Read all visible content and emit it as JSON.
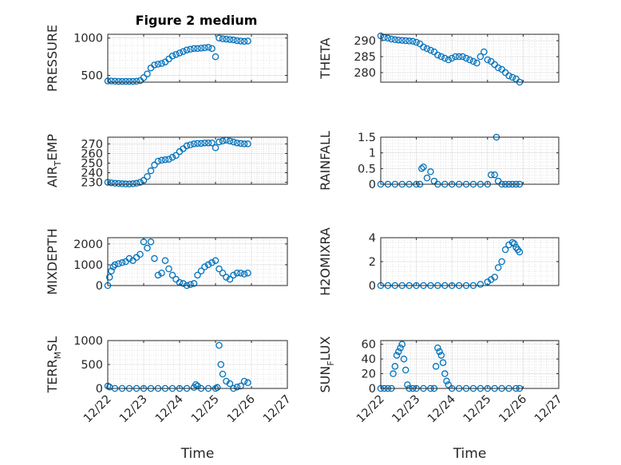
{
  "figure_title": "Figure 2 medium",
  "colors": {
    "marker": "#0072BD",
    "axes": "#262626",
    "grid": "#d9d9d9"
  },
  "chart_data": [
    {
      "type": "scatter",
      "name": "pressure",
      "title": "Figure 2 medium",
      "ylabel_main": "PRESSURE",
      "ylabel_sub": "",
      "ylabel_tail": "",
      "xlabel": "",
      "xlim": [
        0,
        5
      ],
      "ylim": [
        410,
        1050
      ],
      "yticks": [
        500,
        1000
      ],
      "ytick_labels": [
        "500",
        "1000"
      ],
      "x_tick_labels_visible": false,
      "x": [
        0,
        0.1,
        0.2,
        0.3,
        0.4,
        0.5,
        0.6,
        0.7,
        0.8,
        0.9,
        1.0,
        1.1,
        1.2,
        1.3,
        1.4,
        1.5,
        1.6,
        1.7,
        1.8,
        1.9,
        2.0,
        2.1,
        2.2,
        2.3,
        2.4,
        2.5,
        2.6,
        2.7,
        2.8,
        2.9,
        3.0,
        3.1,
        3.2,
        3.3,
        3.4,
        3.5,
        3.6,
        3.7,
        3.8,
        3.9
      ],
      "y": [
        425,
        425,
        422,
        420,
        420,
        420,
        420,
        420,
        422,
        430,
        470,
        520,
        600,
        640,
        650,
        660,
        680,
        720,
        760,
        780,
        800,
        820,
        840,
        850,
        860,
        860,
        865,
        870,
        875,
        860,
        750,
        1000,
        990,
        985,
        980,
        975,
        965,
        960,
        955,
        960
      ]
    },
    {
      "type": "scatter",
      "name": "theta",
      "ylabel_main": "THETA",
      "ylabel_sub": "",
      "ylabel_tail": "",
      "xlabel": "",
      "xlim": [
        0,
        5
      ],
      "ylim": [
        277,
        292
      ],
      "yticks": [
        280,
        285,
        290
      ],
      "ytick_labels": [
        "280",
        "285",
        "290"
      ],
      "x_tick_labels_visible": false,
      "x": [
        0,
        0.1,
        0.2,
        0.3,
        0.4,
        0.5,
        0.6,
        0.7,
        0.8,
        0.9,
        1.0,
        1.1,
        1.2,
        1.3,
        1.4,
        1.5,
        1.6,
        1.7,
        1.8,
        1.9,
        2.0,
        2.1,
        2.2,
        2.3,
        2.4,
        2.5,
        2.6,
        2.7,
        2.8,
        2.9,
        3.0,
        3.1,
        3.2,
        3.3,
        3.4,
        3.5,
        3.6,
        3.7,
        3.8,
        3.9
      ],
      "y": [
        291.5,
        291,
        290.8,
        290.5,
        290.3,
        290.2,
        290.1,
        290,
        289.9,
        289.8,
        289.5,
        289,
        288,
        287.5,
        287,
        286.5,
        285.5,
        285,
        284.5,
        284,
        284.5,
        285,
        285,
        285,
        284.5,
        284,
        283.5,
        283,
        285,
        286.5,
        284,
        283.5,
        282.5,
        281.5,
        281,
        280,
        279,
        278.5,
        278,
        277
      ]
    },
    {
      "type": "scatter",
      "name": "air-temp",
      "ylabel_main": "AIR",
      "ylabel_sub": "T",
      "ylabel_tail": "EMP",
      "xlabel": "",
      "xlim": [
        0,
        5
      ],
      "ylim": [
        228,
        277
      ],
      "yticks": [
        230,
        240,
        250,
        260,
        270
      ],
      "ytick_labels": [
        "230",
        "240",
        "250",
        "260",
        "270"
      ],
      "x_tick_labels_visible": false,
      "x": [
        0,
        0.1,
        0.2,
        0.3,
        0.4,
        0.5,
        0.6,
        0.7,
        0.8,
        0.9,
        1.0,
        1.1,
        1.2,
        1.3,
        1.4,
        1.5,
        1.6,
        1.7,
        1.8,
        1.9,
        2.0,
        2.1,
        2.2,
        2.3,
        2.4,
        2.5,
        2.6,
        2.7,
        2.8,
        2.9,
        3.0,
        3.1,
        3.2,
        3.3,
        3.4,
        3.5,
        3.6,
        3.7,
        3.8,
        3.9
      ],
      "y": [
        230,
        229.5,
        229,
        228.8,
        228.5,
        228.3,
        228.2,
        228.5,
        229,
        230,
        232,
        236,
        242,
        248,
        252,
        253,
        253.5,
        254,
        256,
        258,
        262,
        265,
        268,
        269,
        270,
        270.5,
        270.5,
        271,
        271,
        271,
        266,
        272,
        273,
        274,
        273,
        272,
        271,
        270.5,
        270,
        270
      ]
    },
    {
      "type": "scatter",
      "name": "rainfall",
      "ylabel_main": "RAINFALL",
      "ylabel_sub": "",
      "ylabel_tail": "",
      "xlabel": "",
      "xlim": [
        0,
        5
      ],
      "ylim": [
        0,
        1.5
      ],
      "yticks": [
        0,
        0.5,
        1,
        1.5
      ],
      "ytick_labels": [
        "0",
        "0.5",
        "1",
        "1.5"
      ],
      "x_tick_labels_visible": false,
      "x": [
        0,
        0.2,
        0.4,
        0.6,
        0.8,
        1.0,
        1.1,
        1.15,
        1.2,
        1.3,
        1.4,
        1.5,
        1.6,
        1.8,
        2.0,
        2.2,
        2.4,
        2.6,
        2.8,
        3.0,
        3.1,
        3.2,
        3.25,
        3.3,
        3.4,
        3.5,
        3.6,
        3.7,
        3.8,
        3.9
      ],
      "y": [
        0,
        0,
        0,
        0,
        0,
        0,
        0,
        0.5,
        0.55,
        0.2,
        0.4,
        0.1,
        0,
        0,
        0,
        0,
        0,
        0,
        0,
        0,
        0.3,
        0.3,
        1.5,
        0.1,
        0,
        0,
        0,
        0,
        0,
        0
      ]
    },
    {
      "type": "scatter",
      "name": "mixdepth",
      "ylabel_main": "MIXDEPTH",
      "ylabel_sub": "",
      "ylabel_tail": "",
      "xlabel": "",
      "xlim": [
        0,
        5
      ],
      "ylim": [
        0,
        2300
      ],
      "yticks": [
        0,
        1000,
        2000
      ],
      "ytick_labels": [
        "0",
        "1000",
        "2000"
      ],
      "x_tick_labels_visible": false,
      "x": [
        0,
        0.05,
        0.1,
        0.15,
        0.2,
        0.3,
        0.4,
        0.5,
        0.6,
        0.7,
        0.8,
        0.9,
        1.0,
        1.1,
        1.2,
        1.3,
        1.4,
        1.5,
        1.6,
        1.7,
        1.8,
        1.9,
        2.0,
        2.1,
        2.2,
        2.3,
        2.4,
        2.5,
        2.6,
        2.7,
        2.8,
        2.9,
        3.0,
        3.1,
        3.2,
        3.3,
        3.4,
        3.5,
        3.6,
        3.7,
        3.8,
        3.9
      ],
      "y": [
        0,
        400,
        700,
        900,
        1000,
        1050,
        1100,
        1150,
        1300,
        1200,
        1350,
        1500,
        2100,
        1800,
        2100,
        1300,
        500,
        600,
        1200,
        800,
        500,
        300,
        150,
        100,
        0,
        50,
        100,
        500,
        700,
        900,
        1000,
        1100,
        1200,
        800,
        600,
        400,
        300,
        500,
        600,
        600,
        550,
        600
      ]
    },
    {
      "type": "scatter",
      "name": "h2omixra",
      "ylabel_main": "H2OMIXRA",
      "ylabel_sub": "",
      "ylabel_tail": "",
      "xlabel": "",
      "xlim": [
        0,
        5
      ],
      "ylim": [
        0,
        4
      ],
      "yticks": [
        0,
        2,
        4
      ],
      "ytick_labels": [
        "0",
        "2",
        "4"
      ],
      "x_tick_labels_visible": false,
      "x": [
        0,
        0.2,
        0.4,
        0.6,
        0.8,
        1.0,
        1.2,
        1.4,
        1.6,
        1.8,
        2.0,
        2.2,
        2.4,
        2.6,
        2.8,
        3.0,
        3.1,
        3.2,
        3.3,
        3.4,
        3.5,
        3.6,
        3.7,
        3.75,
        3.8,
        3.85,
        3.9
      ],
      "y": [
        0,
        0,
        0,
        0,
        0,
        0,
        0,
        0,
        0,
        0,
        0,
        0,
        0,
        0,
        0.1,
        0.3,
        0.5,
        0.7,
        1.5,
        2,
        3,
        3.4,
        3.6,
        3.5,
        3.2,
        3,
        2.8
      ]
    },
    {
      "type": "scatter",
      "name": "terr-msl",
      "ylabel_main": "TERR",
      "ylabel_sub": "M",
      "ylabel_tail": "SL",
      "xlabel": "Time",
      "xlim": [
        0,
        5
      ],
      "ylim": [
        0,
        1000
      ],
      "yticks": [
        0,
        500,
        1000
      ],
      "ytick_labels": [
        "0",
        "500",
        "1000"
      ],
      "x_tick_labels_visible": true,
      "x": [
        0,
        0.05,
        0.2,
        0.4,
        0.6,
        0.8,
        1.0,
        1.2,
        1.4,
        1.6,
        1.8,
        2.0,
        2.2,
        2.4,
        2.45,
        2.5,
        2.6,
        2.8,
        3.0,
        3.05,
        3.1,
        3.15,
        3.2,
        3.3,
        3.4,
        3.5,
        3.6,
        3.7,
        3.8,
        3.9
      ],
      "y": [
        50,
        30,
        0,
        0,
        0,
        0,
        0,
        0,
        0,
        0,
        0,
        0,
        0,
        20,
        80,
        50,
        0,
        0,
        0,
        20,
        900,
        500,
        300,
        150,
        100,
        0,
        30,
        50,
        150,
        120
      ]
    },
    {
      "type": "scatter",
      "name": "sun-flux",
      "ylabel_main": "SUN",
      "ylabel_sub": "F",
      "ylabel_tail": "LUX",
      "xlabel": "Time",
      "xlim": [
        0,
        5
      ],
      "ylim": [
        0,
        65
      ],
      "yticks": [
        0,
        20,
        40,
        60
      ],
      "ytick_labels": [
        "0",
        "20",
        "40",
        "60"
      ],
      "x_tick_labels_visible": true,
      "x": [
        0,
        0.1,
        0.2,
        0.3,
        0.35,
        0.4,
        0.45,
        0.5,
        0.55,
        0.6,
        0.65,
        0.7,
        0.75,
        0.8,
        0.9,
        1.0,
        1.2,
        1.4,
        1.5,
        1.55,
        1.6,
        1.65,
        1.7,
        1.75,
        1.8,
        1.85,
        1.9,
        2.0,
        2.2,
        2.4,
        2.6,
        2.8,
        3.0,
        3.2,
        3.4,
        3.6,
        3.8,
        3.9
      ],
      "y": [
        0,
        0,
        0,
        0,
        20,
        30,
        45,
        50,
        55,
        60,
        40,
        25,
        5,
        0,
        0,
        0,
        0,
        0,
        0,
        30,
        55,
        50,
        45,
        35,
        20,
        10,
        5,
        0,
        0,
        0,
        0,
        0,
        0,
        0,
        0,
        0,
        0,
        0
      ]
    }
  ],
  "x_tick_labels": [
    "12/22",
    "12/23",
    "12/24",
    "12/25",
    "12/26",
    "12/27"
  ]
}
